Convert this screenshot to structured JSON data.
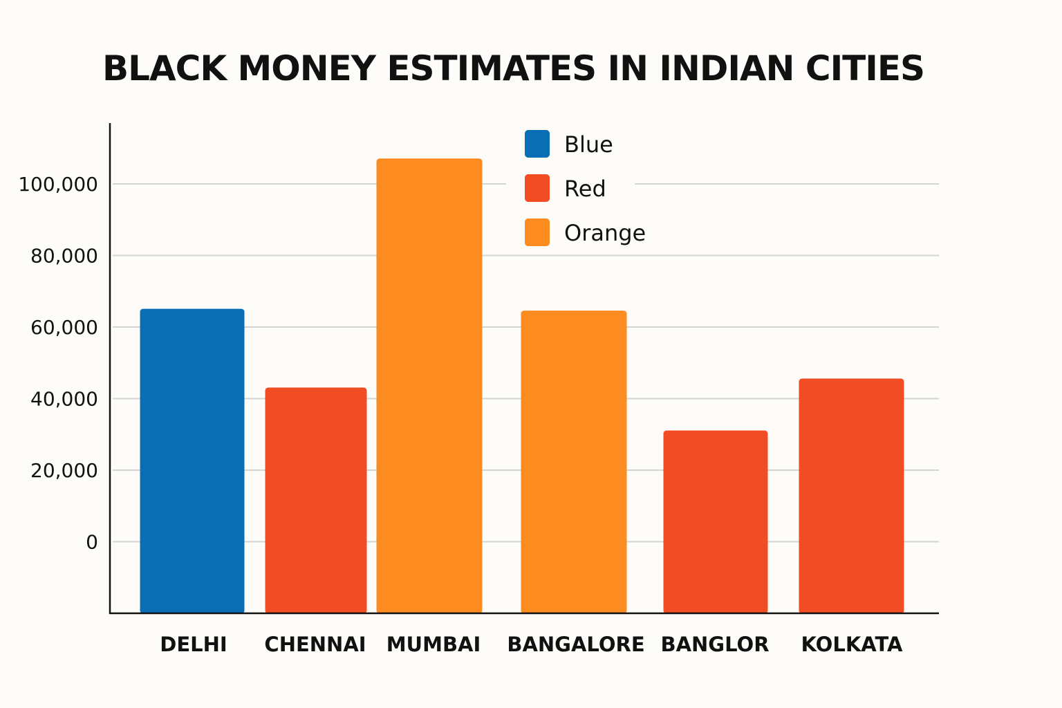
{
  "chart_data": {
    "type": "bar",
    "title": "BLACK MONEY ESTIMATES IN INDIAN CITIES",
    "xlabel": "",
    "ylabel": "",
    "categories": [
      "DELHI",
      "CHENNAI",
      "MUMBAI",
      "BANGALORE",
      "BANGLOR",
      "KOLKATA"
    ],
    "values": [
      65000,
      43000,
      107000,
      64500,
      31000,
      45500
    ],
    "bar_colors": [
      "blue",
      "red",
      "orange",
      "orange",
      "red",
      "red"
    ],
    "yticks": [
      0,
      20000,
      40000,
      60000,
      80000,
      100000
    ],
    "ytick_labels": [
      "0",
      "20,000",
      "40,000",
      "60,000",
      "80,000",
      "100,000"
    ],
    "ylim": [
      -20000,
      117000
    ],
    "grid": true,
    "legend": {
      "placement": "top-center",
      "entries": [
        {
          "label": "Blue",
          "color": "#0a6eb4"
        },
        {
          "label": "Red",
          "color": "#f24c24"
        },
        {
          "label": "Orange",
          "color": "#fc8c20"
        }
      ]
    },
    "colors": {
      "blue": "#0a6eb4",
      "red": "#f24c24",
      "orange": "#fc8c20"
    }
  }
}
